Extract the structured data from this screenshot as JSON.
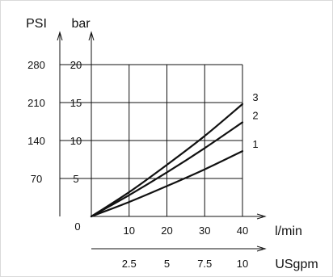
{
  "chart_data": {
    "type": "line",
    "x_primary": {
      "label": "l/min",
      "ticks": [
        10,
        20,
        30,
        40
      ],
      "range": [
        0,
        40
      ]
    },
    "x_secondary": {
      "label": "USgpm",
      "ticks": [
        "2.5",
        "5",
        "7.5",
        "10"
      ]
    },
    "y_primary": {
      "label": "bar",
      "ticks": [
        5,
        10,
        15,
        20
      ],
      "range": [
        0,
        20
      ]
    },
    "y_secondary": {
      "label": "PSI",
      "ticks": [
        70,
        140,
        210,
        280
      ]
    },
    "origin_label": "0",
    "grid": true,
    "series": [
      {
        "name": "1",
        "x": [
          0,
          10,
          20,
          30,
          40
        ],
        "y": [
          0,
          1.9,
          4.0,
          6.2,
          8.6
        ]
      },
      {
        "name": "2",
        "x": [
          0,
          10,
          20,
          30,
          40
        ],
        "y": [
          0,
          2.8,
          5.8,
          9.0,
          12.4
        ]
      },
      {
        "name": "3",
        "x": [
          0,
          10,
          20,
          30,
          40
        ],
        "y": [
          0,
          3.2,
          6.8,
          10.6,
          14.8
        ]
      }
    ]
  }
}
